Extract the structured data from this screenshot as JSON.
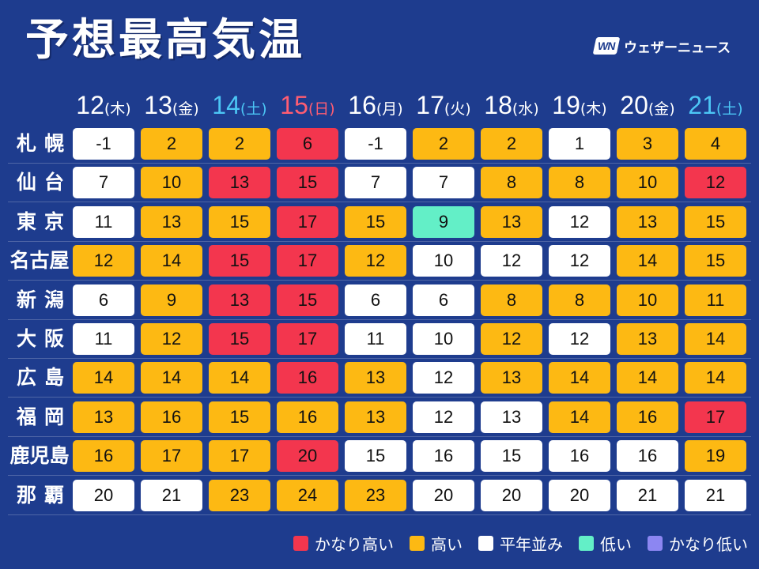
{
  "brand": {
    "mark": "WN",
    "name": "ウェザーニュース"
  },
  "colors": {
    "background": "#1e3c8e"
  },
  "chart_data": {
    "type": "table",
    "title": "予想最高気温",
    "columns": [
      {
        "date": "12",
        "weekday": "(木)",
        "color": "#ffffff"
      },
      {
        "date": "13",
        "weekday": "(金)",
        "color": "#ffffff"
      },
      {
        "date": "14",
        "weekday": "(土)",
        "color": "#4cc6f5"
      },
      {
        "date": "15",
        "weekday": "(日)",
        "color": "#ff5d72"
      },
      {
        "date": "16",
        "weekday": "(月)",
        "color": "#ffffff"
      },
      {
        "date": "17",
        "weekday": "(火)",
        "color": "#ffffff"
      },
      {
        "date": "18",
        "weekday": "(水)",
        "color": "#ffffff"
      },
      {
        "date": "19",
        "weekday": "(木)",
        "color": "#ffffff"
      },
      {
        "date": "20",
        "weekday": "(金)",
        "color": "#ffffff"
      },
      {
        "date": "21",
        "weekday": "(土)",
        "color": "#4cc6f5"
      }
    ],
    "rows": [
      {
        "city": "札幌",
        "cells": [
          {
            "value": -1,
            "level": "平年並み"
          },
          {
            "value": 2,
            "level": "高い"
          },
          {
            "value": 2,
            "level": "高い"
          },
          {
            "value": 6,
            "level": "かなり高い"
          },
          {
            "value": -1,
            "level": "平年並み"
          },
          {
            "value": 2,
            "level": "高い"
          },
          {
            "value": 2,
            "level": "高い"
          },
          {
            "value": 1,
            "level": "平年並み"
          },
          {
            "value": 3,
            "level": "高い"
          },
          {
            "value": 4,
            "level": "高い"
          }
        ]
      },
      {
        "city": "仙台",
        "cells": [
          {
            "value": 7,
            "level": "平年並み"
          },
          {
            "value": 10,
            "level": "高い"
          },
          {
            "value": 13,
            "level": "かなり高い"
          },
          {
            "value": 15,
            "level": "かなり高い"
          },
          {
            "value": 7,
            "level": "平年並み"
          },
          {
            "value": 7,
            "level": "平年並み"
          },
          {
            "value": 8,
            "level": "高い"
          },
          {
            "value": 8,
            "level": "高い"
          },
          {
            "value": 10,
            "level": "高い"
          },
          {
            "value": 12,
            "level": "かなり高い"
          }
        ]
      },
      {
        "city": "東京",
        "cells": [
          {
            "value": 11,
            "level": "平年並み"
          },
          {
            "value": 13,
            "level": "高い"
          },
          {
            "value": 15,
            "level": "高い"
          },
          {
            "value": 17,
            "level": "かなり高い"
          },
          {
            "value": 15,
            "level": "高い"
          },
          {
            "value": 9,
            "level": "低い"
          },
          {
            "value": 13,
            "level": "高い"
          },
          {
            "value": 12,
            "level": "平年並み"
          },
          {
            "value": 13,
            "level": "高い"
          },
          {
            "value": 15,
            "level": "高い"
          }
        ]
      },
      {
        "city": "名古屋",
        "cells": [
          {
            "value": 12,
            "level": "高い"
          },
          {
            "value": 14,
            "level": "高い"
          },
          {
            "value": 15,
            "level": "かなり高い"
          },
          {
            "value": 17,
            "level": "かなり高い"
          },
          {
            "value": 12,
            "level": "高い"
          },
          {
            "value": 10,
            "level": "平年並み"
          },
          {
            "value": 12,
            "level": "平年並み"
          },
          {
            "value": 12,
            "level": "平年並み"
          },
          {
            "value": 14,
            "level": "高い"
          },
          {
            "value": 15,
            "level": "高い"
          }
        ]
      },
      {
        "city": "新潟",
        "cells": [
          {
            "value": 6,
            "level": "平年並み"
          },
          {
            "value": 9,
            "level": "高い"
          },
          {
            "value": 13,
            "level": "かなり高い"
          },
          {
            "value": 15,
            "level": "かなり高い"
          },
          {
            "value": 6,
            "level": "平年並み"
          },
          {
            "value": 6,
            "level": "平年並み"
          },
          {
            "value": 8,
            "level": "高い"
          },
          {
            "value": 8,
            "level": "高い"
          },
          {
            "value": 10,
            "level": "高い"
          },
          {
            "value": 11,
            "level": "高い"
          }
        ]
      },
      {
        "city": "大阪",
        "cells": [
          {
            "value": 11,
            "level": "平年並み"
          },
          {
            "value": 12,
            "level": "高い"
          },
          {
            "value": 15,
            "level": "かなり高い"
          },
          {
            "value": 17,
            "level": "かなり高い"
          },
          {
            "value": 11,
            "level": "平年並み"
          },
          {
            "value": 10,
            "level": "平年並み"
          },
          {
            "value": 12,
            "level": "高い"
          },
          {
            "value": 12,
            "level": "平年並み"
          },
          {
            "value": 13,
            "level": "高い"
          },
          {
            "value": 14,
            "level": "高い"
          }
        ]
      },
      {
        "city": "広島",
        "cells": [
          {
            "value": 14,
            "level": "高い"
          },
          {
            "value": 14,
            "level": "高い"
          },
          {
            "value": 14,
            "level": "高い"
          },
          {
            "value": 16,
            "level": "かなり高い"
          },
          {
            "value": 13,
            "level": "高い"
          },
          {
            "value": 12,
            "level": "平年並み"
          },
          {
            "value": 13,
            "level": "高い"
          },
          {
            "value": 14,
            "level": "高い"
          },
          {
            "value": 14,
            "level": "高い"
          },
          {
            "value": 14,
            "level": "高い"
          }
        ]
      },
      {
        "city": "福岡",
        "cells": [
          {
            "value": 13,
            "level": "高い"
          },
          {
            "value": 16,
            "level": "高い"
          },
          {
            "value": 15,
            "level": "高い"
          },
          {
            "value": 16,
            "level": "高い"
          },
          {
            "value": 13,
            "level": "高い"
          },
          {
            "value": 12,
            "level": "平年並み"
          },
          {
            "value": 13,
            "level": "平年並み"
          },
          {
            "value": 14,
            "level": "高い"
          },
          {
            "value": 16,
            "level": "高い"
          },
          {
            "value": 17,
            "level": "かなり高い"
          }
        ]
      },
      {
        "city": "鹿児島",
        "cells": [
          {
            "value": 16,
            "level": "高い"
          },
          {
            "value": 17,
            "level": "高い"
          },
          {
            "value": 17,
            "level": "高い"
          },
          {
            "value": 20,
            "level": "かなり高い"
          },
          {
            "value": 15,
            "level": "平年並み"
          },
          {
            "value": 16,
            "level": "平年並み"
          },
          {
            "value": 15,
            "level": "平年並み"
          },
          {
            "value": 16,
            "level": "平年並み"
          },
          {
            "value": 16,
            "level": "平年並み"
          },
          {
            "value": 19,
            "level": "高い"
          }
        ]
      },
      {
        "city": "那覇",
        "cells": [
          {
            "value": 20,
            "level": "平年並み"
          },
          {
            "value": 21,
            "level": "平年並み"
          },
          {
            "value": 23,
            "level": "高い"
          },
          {
            "value": 24,
            "level": "高い"
          },
          {
            "value": 23,
            "level": "高い"
          },
          {
            "value": 20,
            "level": "平年並み"
          },
          {
            "value": 20,
            "level": "平年並み"
          },
          {
            "value": 20,
            "level": "平年並み"
          },
          {
            "value": 21,
            "level": "平年並み"
          },
          {
            "value": 21,
            "level": "平年並み"
          }
        ]
      }
    ],
    "legend": [
      {
        "label": "かなり高い",
        "color": "#f3364e"
      },
      {
        "label": "高い",
        "color": "#fdb913"
      },
      {
        "label": "平年並み",
        "color": "#ffffff"
      },
      {
        "label": "低い",
        "color": "#63efc7"
      },
      {
        "label": "かなり低い",
        "color": "#8c86f2"
      }
    ]
  }
}
